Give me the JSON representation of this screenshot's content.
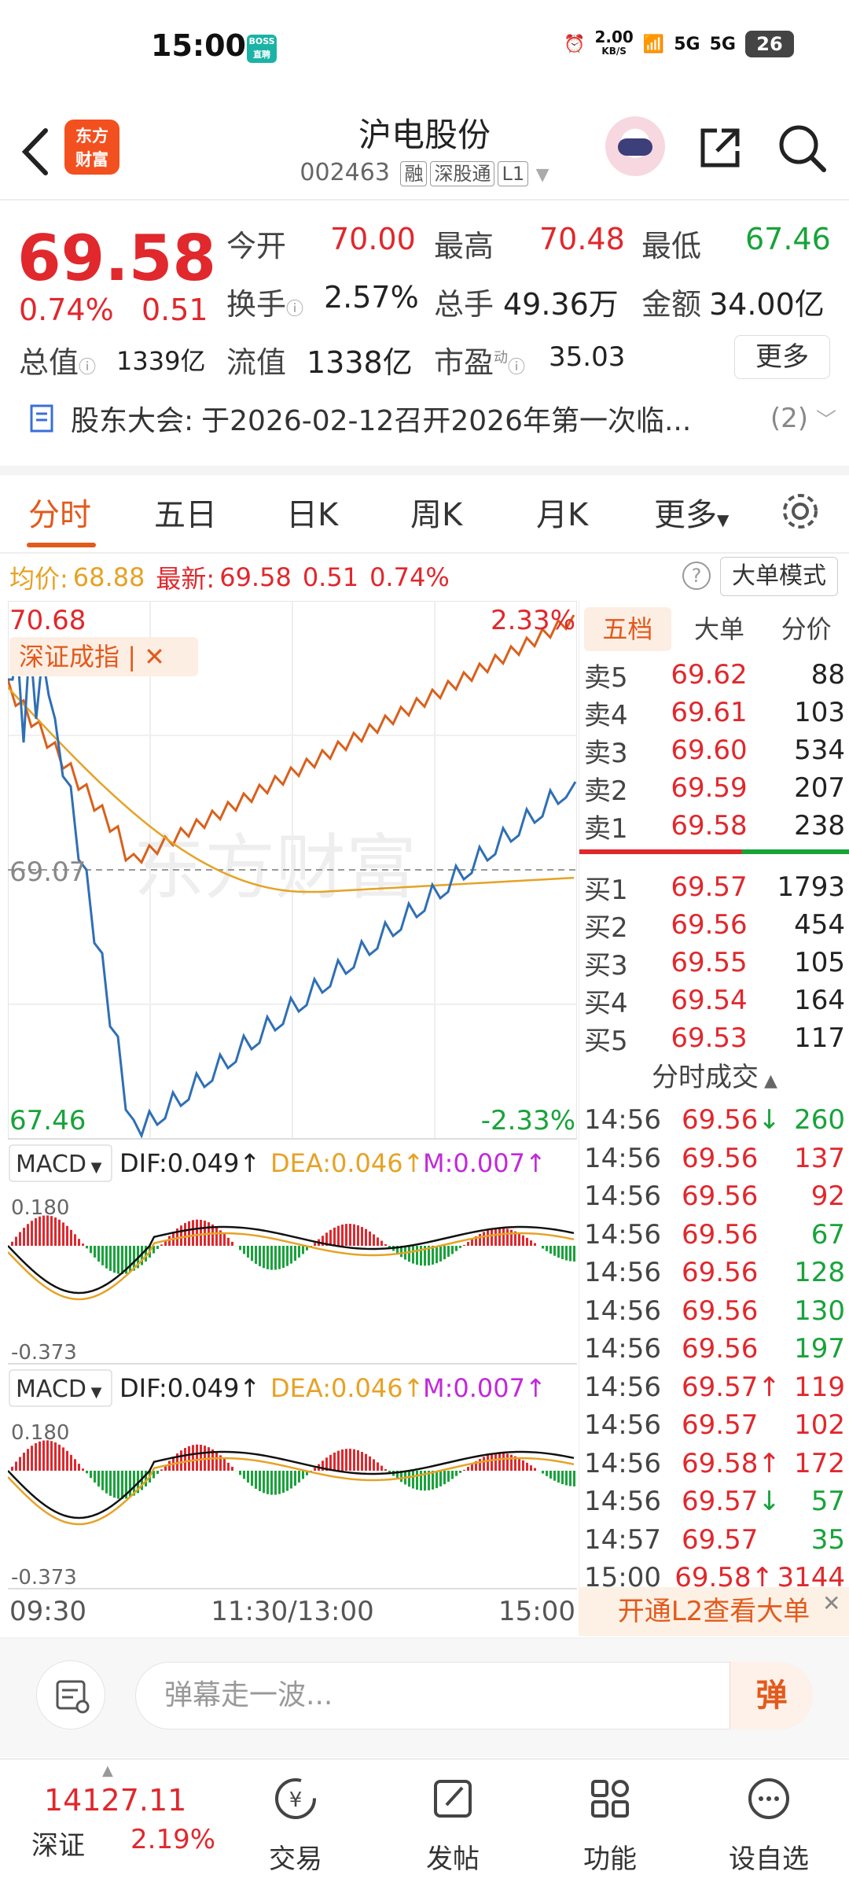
{
  "status_bar": {
    "time": "15:00",
    "app_badge": "BOSS直聘",
    "net_speed": "2.00",
    "net_unit": "KB/S",
    "signal1": "5G",
    "signal2": "5G",
    "battery": "26"
  },
  "header": {
    "logo_line1": "东方",
    "logo_line2": "财富",
    "title": "沪电股份",
    "code": "002463",
    "tags": [
      "融",
      "深股通",
      "L1"
    ]
  },
  "quote": {
    "price": "69.58",
    "change_pct": "0.74%",
    "change": "0.51",
    "fields": [
      {
        "label": "今开",
        "value": "70.00",
        "color": "#e0282d"
      },
      {
        "label": "最高",
        "value": "70.48",
        "color": "#e0282d"
      },
      {
        "label": "最低",
        "value": "67.46",
        "color": "#18a33a"
      },
      {
        "label": "换手",
        "value": "2.57%",
        "color": "#222"
      },
      {
        "label": "总手",
        "value": "49.36万",
        "color": "#222"
      },
      {
        "label": "金额",
        "value": "34.00亿",
        "color": "#222"
      },
      {
        "label": "总值",
        "value": "1339亿",
        "color": "#222"
      },
      {
        "label": "流值",
        "value": "1338亿",
        "color": "#222"
      },
      {
        "label": "市盈",
        "value": "35.03",
        "color": "#222"
      }
    ],
    "pe_sup": "动",
    "more": "更多",
    "notice_label": "股东大会:",
    "notice_text": "于2026-02-12召开2026年第一次临...",
    "notice_count": "(2)"
  },
  "tabs": [
    "分时",
    "五日",
    "日K",
    "周K",
    "月K",
    "更多"
  ],
  "avg_bar": {
    "avg_label": "均价:",
    "avg": "68.88",
    "latest_label": "最新:",
    "latest": "69.58",
    "chg": "0.51",
    "pct": "0.74%",
    "big_order": "大单模式"
  },
  "chart": {
    "y_top": "70.68",
    "y_mid": "69.07",
    "y_bot": "67.46",
    "pct_top": "2.33%",
    "pct_bot": "-2.33%",
    "index_tag": "深证成指",
    "watermark": "东方财富",
    "macd1": {
      "label": "MACD",
      "dif": "DIF:0.049",
      "dea": "DEA:0.046",
      "m": "M:0.007",
      "top": "0.180",
      "bot": "-0.373"
    },
    "macd2": {
      "label": "MACD",
      "dif": "DIF:0.049",
      "dea": "DEA:0.046",
      "m": "M:0.007",
      "top": "0.180",
      "bot": "-0.373"
    },
    "time_labels": [
      "09:30",
      "11:30/13:00",
      "15:00"
    ],
    "colors": {
      "price": "#2f6fb5",
      "avg": "#e6a226",
      "index": "#d9601c"
    }
  },
  "right_panel": {
    "tabs": [
      "五档",
      "大单",
      "分价"
    ],
    "asks": [
      {
        "label": "卖5",
        "price": "69.62",
        "vol": "88"
      },
      {
        "label": "卖4",
        "price": "69.61",
        "vol": "103"
      },
      {
        "label": "卖3",
        "price": "69.60",
        "vol": "534"
      },
      {
        "label": "卖2",
        "price": "69.59",
        "vol": "207"
      },
      {
        "label": "卖1",
        "price": "69.58",
        "vol": "238"
      }
    ],
    "bids": [
      {
        "label": "买1",
        "price": "69.57",
        "vol": "1793"
      },
      {
        "label": "买2",
        "price": "69.56",
        "vol": "454"
      },
      {
        "label": "买3",
        "price": "69.55",
        "vol": "105"
      },
      {
        "label": "买4",
        "price": "69.54",
        "vol": "164"
      },
      {
        "label": "买5",
        "price": "69.53",
        "vol": "117"
      }
    ],
    "trades_title": "分时成交",
    "trades": [
      {
        "t": "14:56",
        "p": "69.56",
        "arrow": "↓",
        "v": "260",
        "vc": "#18a33a"
      },
      {
        "t": "14:56",
        "p": "69.56",
        "arrow": "",
        "v": "137",
        "vc": "#e0282d"
      },
      {
        "t": "14:56",
        "p": "69.56",
        "arrow": "",
        "v": "92",
        "vc": "#e0282d"
      },
      {
        "t": "14:56",
        "p": "69.56",
        "arrow": "",
        "v": "67",
        "vc": "#18a33a"
      },
      {
        "t": "14:56",
        "p": "69.56",
        "arrow": "",
        "v": "128",
        "vc": "#18a33a"
      },
      {
        "t": "14:56",
        "p": "69.56",
        "arrow": "",
        "v": "130",
        "vc": "#18a33a"
      },
      {
        "t": "14:56",
        "p": "69.56",
        "arrow": "",
        "v": "197",
        "vc": "#18a33a"
      },
      {
        "t": "14:56",
        "p": "69.57",
        "arrow": "↑",
        "v": "119",
        "vc": "#e0282d"
      },
      {
        "t": "14:56",
        "p": "69.57",
        "arrow": "",
        "v": "102",
        "vc": "#e0282d"
      },
      {
        "t": "14:56",
        "p": "69.58",
        "arrow": "↑",
        "v": "172",
        "vc": "#e0282d"
      },
      {
        "t": "14:56",
        "p": "69.57",
        "arrow": "↓",
        "v": "57",
        "vc": "#18a33a"
      },
      {
        "t": "14:57",
        "p": "69.57",
        "arrow": "",
        "v": "35",
        "vc": "#18a33a"
      },
      {
        "t": "15:00",
        "p": "69.58",
        "arrow": "↑",
        "v": "3144",
        "vc": "#e0282d"
      }
    ],
    "l2_banner": "开通L2查看大单"
  },
  "danmu": {
    "placeholder": "弹幕走一波...",
    "send": "弹"
  },
  "bottom_nav": {
    "index_value": "14127.11",
    "index_name": "深证",
    "index_pct": "2.19%",
    "items": [
      "交易",
      "发帖",
      "功能",
      "设自选"
    ]
  }
}
